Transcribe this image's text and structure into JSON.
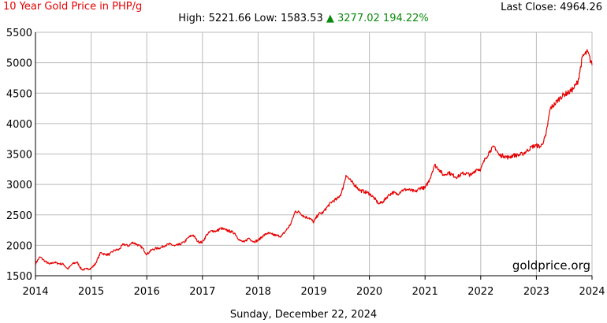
{
  "header": {
    "title": "10 Year Gold Price in PHP/g",
    "last_close_label": "Last Close:",
    "last_close_value": "4964.26",
    "high_label": "High:",
    "high_value": "5221.66",
    "low_label": "Low:",
    "low_value": "1583.53",
    "change_arrow": "▲",
    "change_value": "3277.02",
    "change_percent": "194.22%"
  },
  "footer": {
    "date": "Sunday, December 22, 2024"
  },
  "colors": {
    "line": "#e60000",
    "change_up": "#0a8a0a",
    "grid": "#bbbbbb"
  },
  "chart_data": {
    "type": "line",
    "title": "10 Year Gold Price in PHP/g",
    "xlabel": "",
    "ylabel": "",
    "xlim": [
      2014,
      2024
    ],
    "ylim": [
      1500,
      5500
    ],
    "x_ticks": [
      "2014",
      "2015",
      "2016",
      "2017",
      "2018",
      "2019",
      "2020",
      "2021",
      "2022",
      "2023",
      "2024"
    ],
    "y_ticks": [
      1500,
      2000,
      2500,
      3000,
      3500,
      4000,
      4500,
      5000,
      5500
    ],
    "grid": true,
    "watermark": "goldprice.org",
    "series": [
      {
        "x": [
          2014.0,
          2014.08,
          2014.17,
          2014.25,
          2014.33,
          2014.42,
          2014.5,
          2014.58,
          2014.67,
          2014.75,
          2014.83,
          2014.92,
          2015.0,
          2015.08,
          2015.17,
          2015.25,
          2015.33,
          2015.42,
          2015.5,
          2015.58,
          2015.67,
          2015.75,
          2015.83,
          2015.92,
          2016.0,
          2016.08,
          2016.17,
          2016.25,
          2016.33,
          2016.42,
          2016.5,
          2016.58,
          2016.67,
          2016.75,
          2016.83,
          2016.92,
          2017.0,
          2017.08,
          2017.17,
          2017.25,
          2017.33,
          2017.42,
          2017.5,
          2017.58,
          2017.67,
          2017.75,
          2017.83,
          2017.92,
          2018.0,
          2018.08,
          2018.17,
          2018.25,
          2018.33,
          2018.42,
          2018.5,
          2018.58,
          2018.67,
          2018.75,
          2018.83,
          2018.92,
          2019.0,
          2019.08,
          2019.17,
          2019.25,
          2019.33,
          2019.42,
          2019.5,
          2019.58,
          2019.67,
          2019.75,
          2019.83,
          2019.92,
          2020.0,
          2020.08,
          2020.17,
          2020.25,
          2020.33,
          2020.42,
          2020.5,
          2020.58,
          2020.67,
          2020.75,
          2020.83,
          2020.92,
          2021.0,
          2021.08,
          2021.17,
          2021.25,
          2021.33,
          2021.42,
          2021.5,
          2021.58,
          2021.67,
          2021.75,
          2021.83,
          2021.92,
          2022.0,
          2022.08,
          2022.17,
          2022.25,
          2022.33,
          2022.42,
          2022.5,
          2022.58,
          2022.67,
          2022.75,
          2022.83,
          2022.92,
          2023.0,
          2023.08,
          2023.17,
          2023.25,
          2023.33,
          2023.42,
          2023.5,
          2023.58,
          2023.67,
          2023.75,
          2023.83,
          2023.92,
          2024.0
        ],
        "y": [
          1700,
          1810,
          1740,
          1690,
          1720,
          1700,
          1690,
          1610,
          1700,
          1720,
          1600,
          1610,
          1620,
          1700,
          1880,
          1850,
          1850,
          1920,
          1930,
          2020,
          1990,
          2050,
          2010,
          1960,
          1850,
          1920,
          1950,
          1960,
          2000,
          2020,
          1990,
          2010,
          2050,
          2130,
          2170,
          2060,
          2050,
          2180,
          2240,
          2230,
          2280,
          2250,
          2230,
          2200,
          2080,
          2050,
          2120,
          2060,
          2080,
          2150,
          2200,
          2180,
          2160,
          2150,
          2240,
          2340,
          2560,
          2540,
          2470,
          2450,
          2380,
          2510,
          2540,
          2640,
          2720,
          2760,
          2860,
          3150,
          3050,
          2980,
          2900,
          2880,
          2850,
          2780,
          2680,
          2720,
          2810,
          2870,
          2840,
          2900,
          2920,
          2900,
          2880,
          2950,
          2940,
          3080,
          3320,
          3250,
          3150,
          3200,
          3150,
          3120,
          3180,
          3180,
          3150,
          3250,
          3250,
          3420,
          3560,
          3620,
          3480,
          3470,
          3440,
          3480,
          3480,
          3500,
          3550,
          3620,
          3640,
          3620,
          3800,
          4250,
          4320,
          4420,
          4480,
          4510,
          4580,
          4700,
          5100,
          5180,
          4964.26
        ]
      }
    ]
  }
}
